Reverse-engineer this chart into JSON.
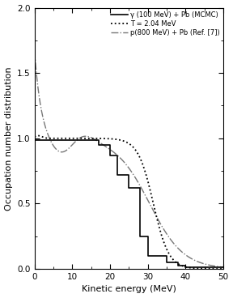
{
  "title": "",
  "xlabel": "Kinetic energy (MeV)",
  "ylabel": "Occupation number distribution",
  "xlim": [
    0,
    50
  ],
  "ylim": [
    0.0,
    2.0
  ],
  "yticks": [
    0.0,
    0.5,
    1.0,
    1.5,
    2.0
  ],
  "xticks": [
    0,
    10,
    20,
    30,
    40,
    50
  ],
  "legend": [
    "γ (100 MeV) + Pb (MCMC)",
    "T = 2.04 MeV",
    "p(800 MeV) + Pb (Ref. [7])"
  ],
  "background_color": "#ffffff",
  "line_color_solid": "#000000",
  "line_color_dotted": "#000000",
  "line_color_dashdot": "#777777",
  "step_edges": [
    0,
    17,
    20,
    22,
    25,
    28,
    30,
    35,
    38,
    40,
    42,
    50
  ],
  "step_values": [
    0.985,
    0.95,
    0.87,
    0.72,
    0.62,
    0.25,
    0.1,
    0.05,
    0.025,
    0.015,
    0.01
  ]
}
